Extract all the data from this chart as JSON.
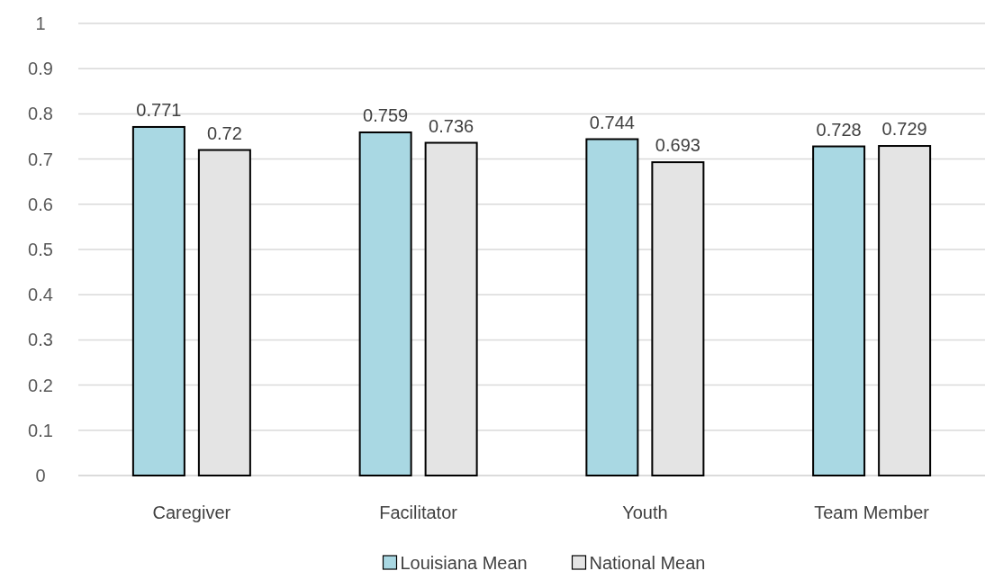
{
  "chart_data": {
    "type": "bar",
    "categories": [
      "Caregiver",
      "Facilitator",
      "Youth",
      "Team Member"
    ],
    "series": [
      {
        "name": "Louisiana Mean",
        "color": "#a9d8e3",
        "values": [
          0.771,
          0.759,
          0.744,
          0.728
        ]
      },
      {
        "name": "National Mean",
        "color": "#e4e4e4",
        "values": [
          0.72,
          0.736,
          0.693,
          0.729
        ]
      }
    ],
    "ylim": [
      0,
      1
    ],
    "yticks": [
      0,
      0.1,
      0.2,
      0.3,
      0.4,
      0.5,
      0.6,
      0.7,
      0.8,
      0.9,
      1
    ],
    "grid": "y",
    "legend": "bottom",
    "data_labels": true
  }
}
